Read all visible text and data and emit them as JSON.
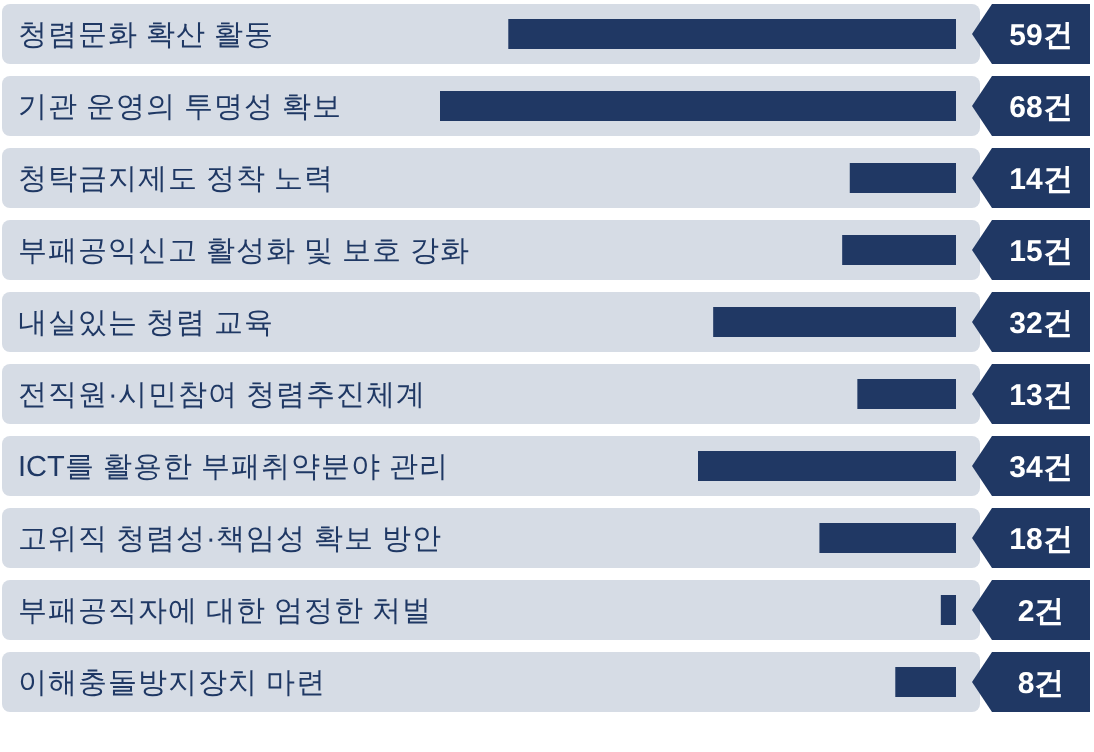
{
  "chart_data": {
    "type": "bar",
    "orientation": "horizontal",
    "color": "#203864",
    "categories": [
      "청렴문화 확산 활동",
      "기관 운영의 투명성 확보",
      "청탁금지제도 정착 노력",
      "부패공익신고 활성화 및 보호 강화",
      "내실있는 청렴 교육",
      "전직원·시민참여 청렴추진체계",
      "ICT를 활용한 부패취약분야 관리",
      "고위직 청렴성·책임성 확보 방안",
      "부패공직자에 대한 엄정한 처벌",
      "이해충돌방지장치 마련"
    ],
    "values": [
      59,
      68,
      14,
      15,
      32,
      13,
      34,
      18,
      2,
      8
    ],
    "value_labels": [
      "59건",
      "68건",
      "14건",
      "15건",
      "32건",
      "13건",
      "34건",
      "18건",
      "2건",
      "8건"
    ]
  }
}
